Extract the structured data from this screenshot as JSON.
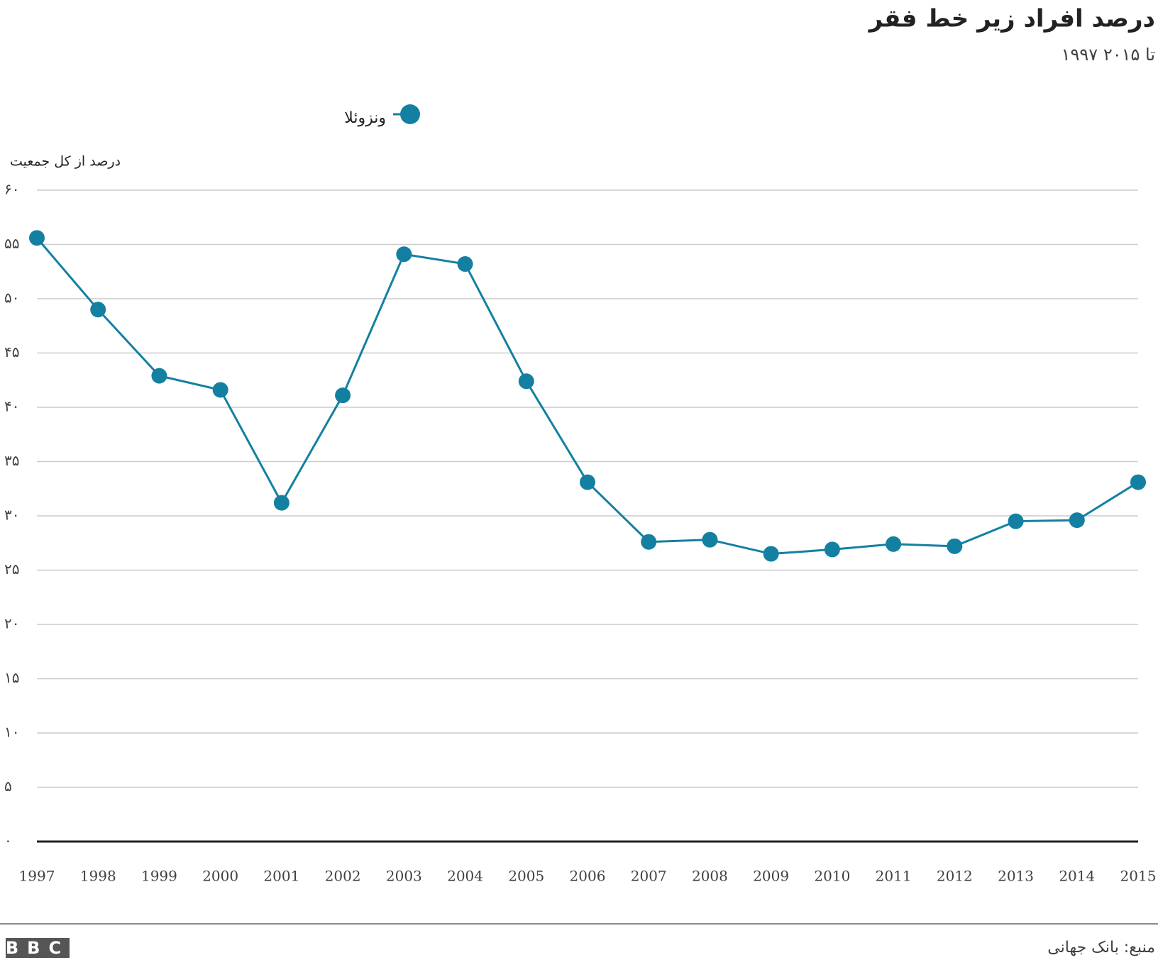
{
  "chart_data": {
    "type": "line",
    "title": "درصد افراد زیر خط فقر",
    "subtitle": "۱۹۹۷ تا ۲۰۱۵",
    "y_label": "درصد از کل جمعیت",
    "source": "منبع: بانک جهانی",
    "logo": "BBC",
    "categories": [
      "1997",
      "1998",
      "1999",
      "2000",
      "2001",
      "2002",
      "2003",
      "2004",
      "2005",
      "2006",
      "2007",
      "2008",
      "2009",
      "2010",
      "2011",
      "2012",
      "2013",
      "2014",
      "2015"
    ],
    "series": [
      {
        "name": "ونزوئلا",
        "color": "#1380a1",
        "values": [
          55.6,
          49.0,
          42.9,
          41.6,
          31.2,
          41.1,
          54.1,
          53.2,
          42.4,
          33.1,
          27.6,
          27.8,
          26.5,
          26.9,
          27.4,
          27.2,
          29.5,
          29.6,
          33.1
        ]
      }
    ],
    "ylim": [
      0,
      60
    ],
    "yticks": [
      {
        "value": 0,
        "label": "۰"
      },
      {
        "value": 5,
        "label": "۵"
      },
      {
        "value": 10,
        "label": "۱۰"
      },
      {
        "value": 15,
        "label": "۱۵"
      },
      {
        "value": 20,
        "label": "۲۰"
      },
      {
        "value": 25,
        "label": "۲۵"
      },
      {
        "value": 30,
        "label": "۳۰"
      },
      {
        "value": 35,
        "label": "۳۵"
      },
      {
        "value": 40,
        "label": "۴۰"
      },
      {
        "value": 45,
        "label": "۴۵"
      },
      {
        "value": 50,
        "label": "۵۰"
      },
      {
        "value": 55,
        "label": "۵۵"
      },
      {
        "value": 60,
        "label": "۶۰"
      }
    ],
    "grid": true
  }
}
